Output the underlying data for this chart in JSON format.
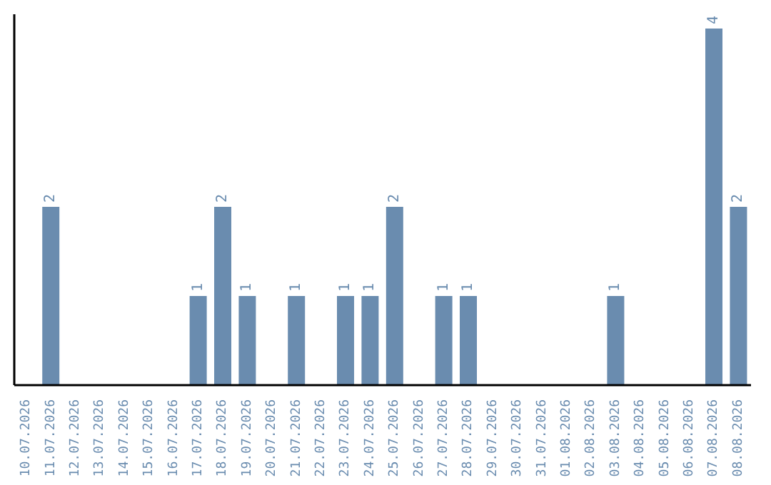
{
  "chart_data": {
    "type": "bar",
    "categories": [
      "10.07.2026",
      "11.07.2026",
      "12.07.2026",
      "13.07.2026",
      "14.07.2026",
      "15.07.2026",
      "16.07.2026",
      "17.07.2026",
      "18.07.2026",
      "19.07.2026",
      "20.07.2026",
      "21.07.2026",
      "22.07.2026",
      "23.07.2026",
      "24.07.2026",
      "25.07.2026",
      "26.07.2026",
      "27.07.2026",
      "28.07.2026",
      "29.07.2026",
      "30.07.2026",
      "31.07.2026",
      "01.08.2026",
      "02.08.2026",
      "03.08.2026",
      "04.08.2026",
      "05.08.2026",
      "06.08.2026",
      "07.08.2026",
      "08.08.2026"
    ],
    "values": [
      0,
      2,
      0,
      0,
      0,
      0,
      0,
      1,
      2,
      1,
      0,
      1,
      0,
      1,
      1,
      2,
      0,
      1,
      1,
      0,
      0,
      0,
      0,
      0,
      1,
      0,
      0,
      0,
      4,
      2
    ],
    "value_labels": [
      null,
      "2",
      null,
      null,
      null,
      null,
      null,
      "1",
      "2",
      "1",
      null,
      "1",
      null,
      "1",
      "1",
      "2",
      null,
      "1",
      "1",
      null,
      null,
      null,
      null,
      null,
      "1",
      null,
      null,
      null,
      "4",
      "2"
    ],
    "color": "#6a8caf",
    "grid": false,
    "legend": false
  }
}
